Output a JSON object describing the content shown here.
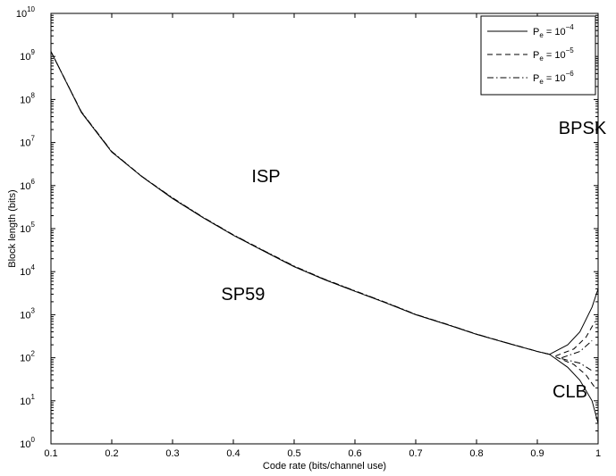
{
  "chart_data": {
    "type": "line",
    "xlabel": "Code rate (bits/channel use)",
    "ylabel": "Block length (bits)",
    "xlim": [
      0.1,
      1.0
    ],
    "ylim_exponents": [
      0,
      10
    ],
    "y_scale": "log",
    "x_ticks": [
      "0.1",
      "0.2",
      "0.3",
      "0.4",
      "0.5",
      "0.6",
      "0.7",
      "0.8",
      "0.9",
      "1"
    ],
    "y_tick_base": "10",
    "y_tick_exponents": [
      "0",
      "1",
      "2",
      "3",
      "4",
      "5",
      "6",
      "7",
      "8",
      "9",
      "10"
    ],
    "grid": false,
    "legend_position": "top-right",
    "series": [
      {
        "name": "P_e = 10^-4",
        "legend_base": "P",
        "legend_sub": "e",
        "legend_mid": " = 10",
        "legend_sup": "−4",
        "style": "solid",
        "x": [
          0.1,
          0.15,
          0.2,
          0.25,
          0.3,
          0.35,
          0.4,
          0.45,
          0.5,
          0.55,
          0.6,
          0.65,
          0.7,
          0.75,
          0.8,
          0.85,
          0.9,
          0.92
        ],
        "y": [
          1300000000.0,
          50000000.0,
          6000000.0,
          1600000.0,
          500000.0,
          180000.0,
          70000.0,
          30000.0,
          13000.0,
          6500.0,
          3500.0,
          1900.0,
          1000.0,
          600,
          350,
          220,
          140,
          120
        ]
      },
      {
        "name": "P_e = 10^-5",
        "legend_base": "P",
        "legend_sub": "e",
        "legend_mid": " = 10",
        "legend_sup": "−5",
        "style": "dashed",
        "x": [
          0.1,
          0.15,
          0.2,
          0.25,
          0.3,
          0.35,
          0.4,
          0.45,
          0.5,
          0.55,
          0.6,
          0.65,
          0.7,
          0.75,
          0.8,
          0.85,
          0.9,
          0.92
        ],
        "y": [
          1300000000.0,
          51000000.0,
          6100000.0,
          1600000.0,
          510000.0,
          182000.0,
          71000.0,
          30500.0,
          13200.0,
          6600.0,
          3550.0,
          1920.0,
          1010.0,
          605,
          352,
          221,
          140,
          120
        ]
      },
      {
        "name": "P_e = 10^-6",
        "legend_base": "P",
        "legend_sub": "e",
        "legend_mid": " = 10",
        "legend_sup": "−6",
        "style": "dashdot",
        "x": [
          0.1,
          0.15,
          0.2,
          0.25,
          0.3,
          0.35,
          0.4,
          0.45,
          0.5,
          0.55,
          0.6,
          0.65,
          0.7,
          0.75,
          0.8,
          0.85,
          0.9,
          0.92
        ],
        "y": [
          1300000000.0,
          52000000.0,
          6200000.0,
          1620000.0,
          520000.0,
          185000.0,
          72000.0,
          31000.0,
          13500.0,
          6700.0,
          3600.0,
          1950.0,
          1020.0,
          610,
          355,
          222,
          141,
          120
        ]
      }
    ],
    "branches": [
      {
        "style": "solid",
        "x": [
          0.92,
          0.95,
          0.97,
          0.99,
          1.0
        ],
        "y": [
          120,
          200,
          400,
          1500,
          4000
        ]
      },
      {
        "style": "solid",
        "x": [
          0.92,
          0.95,
          0.97,
          0.99,
          1.0
        ],
        "y": [
          120,
          60,
          30,
          10,
          3
        ]
      },
      {
        "style": "dashed",
        "x": [
          0.93,
          0.96,
          0.98,
          0.995
        ],
        "y": [
          110,
          160,
          300,
          700
        ]
      },
      {
        "style": "dashed",
        "x": [
          0.93,
          0.96,
          0.98,
          0.995
        ],
        "y": [
          105,
          70,
          40,
          20
        ]
      },
      {
        "style": "dashdot",
        "x": [
          0.94,
          0.97,
          0.99
        ],
        "y": [
          100,
          140,
          250
        ]
      },
      {
        "style": "dashdot",
        "x": [
          0.94,
          0.97,
          0.99
        ],
        "y": [
          95,
          75,
          50
        ]
      }
    ],
    "annotations": [
      {
        "text": "ISP",
        "x": 0.43,
        "y": 1200000.0
      },
      {
        "text": "SP59",
        "x": 0.38,
        "y": 2200.0
      },
      {
        "text": "CLB",
        "x": 0.925,
        "y": 12
      },
      {
        "text": "BPSK",
        "x": 0.935,
        "y": 16000000.0
      }
    ]
  }
}
